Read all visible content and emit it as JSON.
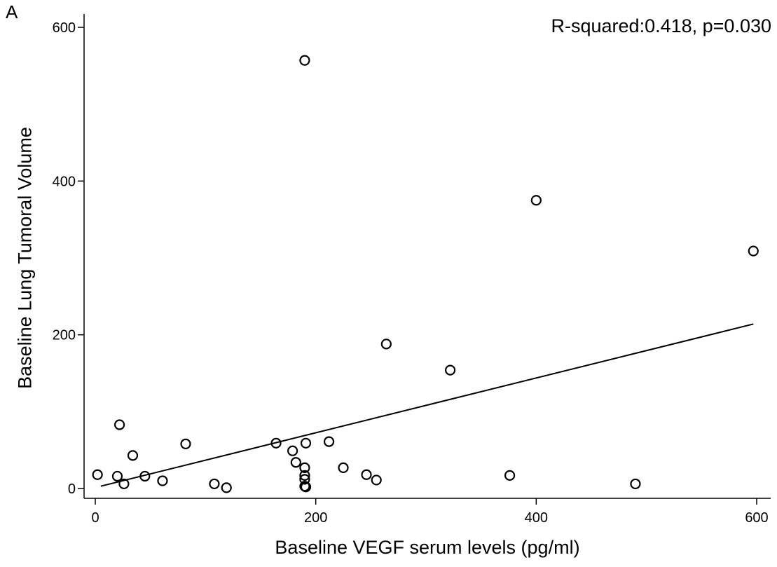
{
  "panel_label": "A",
  "chart_data": {
    "type": "scatter",
    "xlabel": "Baseline VEGF serum levels (pg/ml)",
    "ylabel": "Baseline Lung Tumoral Volume",
    "annotation": "R-squared:0.418, p=0.030",
    "xlim": [
      0,
      600
    ],
    "ylim": [
      0,
      600
    ],
    "x_ticks": [
      0,
      200,
      400,
      600
    ],
    "y_ticks": [
      0,
      200,
      400,
      600
    ],
    "grid": false,
    "legend": "none",
    "point_style": "hollow circle",
    "points": [
      {
        "x": 2,
        "y": 18
      },
      {
        "x": 20,
        "y": 16
      },
      {
        "x": 22,
        "y": 83
      },
      {
        "x": 26,
        "y": 6
      },
      {
        "x": 34,
        "y": 43
      },
      {
        "x": 45,
        "y": 16
      },
      {
        "x": 61,
        "y": 10
      },
      {
        "x": 82,
        "y": 58
      },
      {
        "x": 108,
        "y": 6
      },
      {
        "x": 119,
        "y": 1
      },
      {
        "x": 164,
        "y": 59
      },
      {
        "x": 179,
        "y": 49
      },
      {
        "x": 182,
        "y": 34
      },
      {
        "x": 190,
        "y": 557
      },
      {
        "x": 190,
        "y": 27
      },
      {
        "x": 190,
        "y": 17
      },
      {
        "x": 190,
        "y": 12
      },
      {
        "x": 190,
        "y": 3
      },
      {
        "x": 191,
        "y": 2
      },
      {
        "x": 191,
        "y": 59
      },
      {
        "x": 212,
        "y": 61
      },
      {
        "x": 225,
        "y": 27
      },
      {
        "x": 246,
        "y": 18
      },
      {
        "x": 255,
        "y": 11
      },
      {
        "x": 264,
        "y": 188
      },
      {
        "x": 322,
        "y": 154
      },
      {
        "x": 376,
        "y": 17
      },
      {
        "x": 400,
        "y": 375
      },
      {
        "x": 490,
        "y": 6
      },
      {
        "x": 597,
        "y": 309
      }
    ],
    "fit_line": {
      "x": [
        5,
        597
      ],
      "y": [
        3,
        214
      ]
    }
  }
}
